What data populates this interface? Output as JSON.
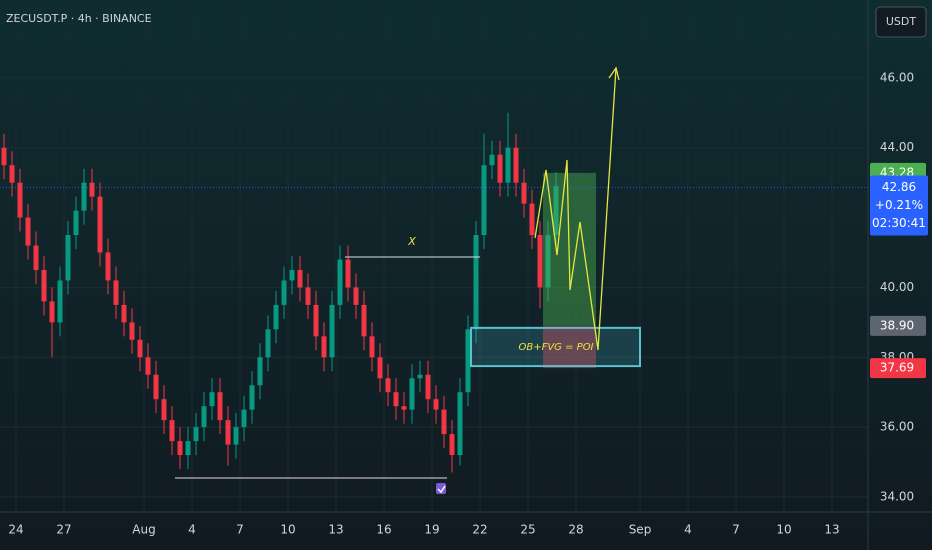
{
  "chart_data": {
    "type": "candlestick",
    "title": "ZECUSDT.P · 4h · BINANCE",
    "currency": "USDT",
    "up_color": "#089981",
    "down_color": "#f23645",
    "open": [
      44.0,
      43.5,
      43.0,
      42.0,
      41.2,
      40.5,
      39.6,
      39.0,
      40.2,
      41.5,
      42.2,
      43.0,
      42.6,
      41.0,
      40.2,
      39.5,
      39.0,
      38.5,
      38.0,
      37.5,
      36.8,
      36.2,
      35.6,
      35.2,
      35.6,
      36.0,
      36.6,
      37.0,
      36.2,
      35.5,
      36.0,
      36.5,
      37.2,
      38.0,
      38.8,
      39.5,
      40.2,
      40.5,
      40.0,
      39.5,
      38.6,
      38.0,
      39.5,
      40.8,
      40.0,
      39.5,
      38.6,
      38.0,
      37.4,
      37.0,
      36.6,
      36.5,
      37.4,
      37.5,
      36.8,
      36.5,
      35.8,
      35.2,
      37.0,
      38.8,
      41.5,
      43.5,
      43.8,
      43.0,
      44.0,
      43.0,
      42.4,
      41.5,
      40.0,
      41.5
    ],
    "high": [
      44.4,
      43.9,
      43.4,
      42.4,
      41.6,
      40.9,
      40.0,
      40.6,
      41.9,
      42.6,
      43.4,
      43.4,
      43.0,
      41.4,
      40.6,
      39.9,
      39.4,
      38.9,
      38.4,
      37.9,
      37.2,
      36.6,
      36.0,
      36.0,
      36.4,
      37.0,
      37.4,
      37.4,
      36.6,
      36.4,
      36.9,
      37.6,
      38.4,
      39.2,
      39.9,
      40.6,
      40.9,
      40.9,
      40.4,
      39.9,
      39.0,
      39.9,
      41.2,
      41.2,
      40.4,
      39.9,
      39.0,
      38.4,
      37.8,
      37.4,
      37.0,
      37.8,
      37.9,
      37.9,
      37.2,
      36.9,
      36.2,
      37.4,
      39.2,
      41.9,
      44.4,
      44.2,
      44.2,
      45.0,
      44.4,
      43.4,
      42.8,
      41.9,
      41.9,
      43.3
    ],
    "low": [
      43.1,
      42.6,
      41.6,
      40.8,
      40.1,
      39.2,
      38.0,
      38.6,
      39.8,
      41.1,
      41.8,
      42.2,
      40.6,
      39.8,
      39.1,
      38.6,
      38.1,
      37.6,
      37.1,
      36.4,
      35.8,
      35.2,
      34.8,
      34.8,
      35.2,
      35.6,
      36.2,
      35.8,
      34.9,
      35.1,
      35.6,
      36.1,
      36.8,
      37.6,
      38.4,
      39.1,
      39.8,
      39.6,
      39.1,
      38.2,
      37.6,
      37.6,
      39.1,
      39.6,
      39.1,
      38.2,
      37.6,
      37.0,
      36.6,
      36.2,
      36.1,
      36.1,
      37.0,
      36.4,
      36.1,
      35.4,
      34.7,
      34.9,
      36.6,
      38.4,
      41.1,
      43.1,
      42.6,
      42.6,
      42.6,
      42.0,
      41.1,
      39.4,
      39.6,
      41.1
    ],
    "close": [
      43.5,
      43.0,
      42.0,
      41.2,
      40.5,
      39.6,
      39.0,
      40.2,
      41.5,
      42.2,
      43.0,
      42.6,
      41.0,
      40.2,
      39.5,
      39.0,
      38.5,
      38.0,
      37.5,
      36.8,
      36.2,
      35.6,
      35.2,
      35.6,
      36.0,
      36.6,
      37.0,
      36.2,
      35.5,
      36.0,
      36.5,
      37.2,
      38.0,
      38.8,
      39.5,
      40.2,
      40.5,
      40.0,
      39.5,
      38.6,
      38.0,
      39.5,
      40.8,
      40.0,
      39.5,
      38.6,
      38.0,
      37.4,
      37.0,
      36.6,
      36.5,
      37.4,
      37.5,
      36.8,
      36.5,
      35.8,
      35.2,
      37.0,
      38.8,
      41.5,
      43.5,
      43.8,
      43.0,
      44.0,
      43.0,
      42.4,
      41.5,
      40.0,
      41.5,
      42.9
    ],
    "xlim": [
      0,
      108.5
    ],
    "xticks": [
      {
        "value": 2,
        "label": "24"
      },
      {
        "value": 8,
        "label": "27"
      },
      {
        "value": 18,
        "label": "Aug"
      },
      {
        "value": 24,
        "label": "4"
      },
      {
        "value": 30,
        "label": "7"
      },
      {
        "value": 36,
        "label": "10"
      },
      {
        "value": 42,
        "label": "13"
      },
      {
        "value": 48,
        "label": "16"
      },
      {
        "value": 54,
        "label": "19"
      },
      {
        "value": 60,
        "label": "22"
      },
      {
        "value": 66,
        "label": "25"
      },
      {
        "value": 72,
        "label": "28"
      },
      {
        "value": 80,
        "label": "Sep"
      },
      {
        "value": 86,
        "label": "4"
      },
      {
        "value": 92,
        "label": "7"
      },
      {
        "value": 98,
        "label": "10"
      },
      {
        "value": 104,
        "label": "13"
      }
    ],
    "ylim": [
      33.57,
      48.23
    ],
    "yticks": [
      {
        "value": 34,
        "label": "34.00"
      },
      {
        "value": 36,
        "label": "36.00"
      },
      {
        "value": 38,
        "label": "38.00"
      },
      {
        "value": 40,
        "label": "40.00"
      },
      {
        "value": 44,
        "label": "44.00"
      },
      {
        "value": 46,
        "label": "46.00"
      }
    ],
    "target": {
      "value": 43.28,
      "label": "43.28"
    },
    "entry": {
      "value": 38.9,
      "label": "38.90"
    },
    "stop": {
      "value": 37.69,
      "label": "37.69"
    },
    "last": {
      "value": 42.86,
      "label": "42.86"
    },
    "change": "+0.21%",
    "countdown": "02:30:41",
    "x_label": "X",
    "poi_label": "OB+FVG = POI"
  }
}
